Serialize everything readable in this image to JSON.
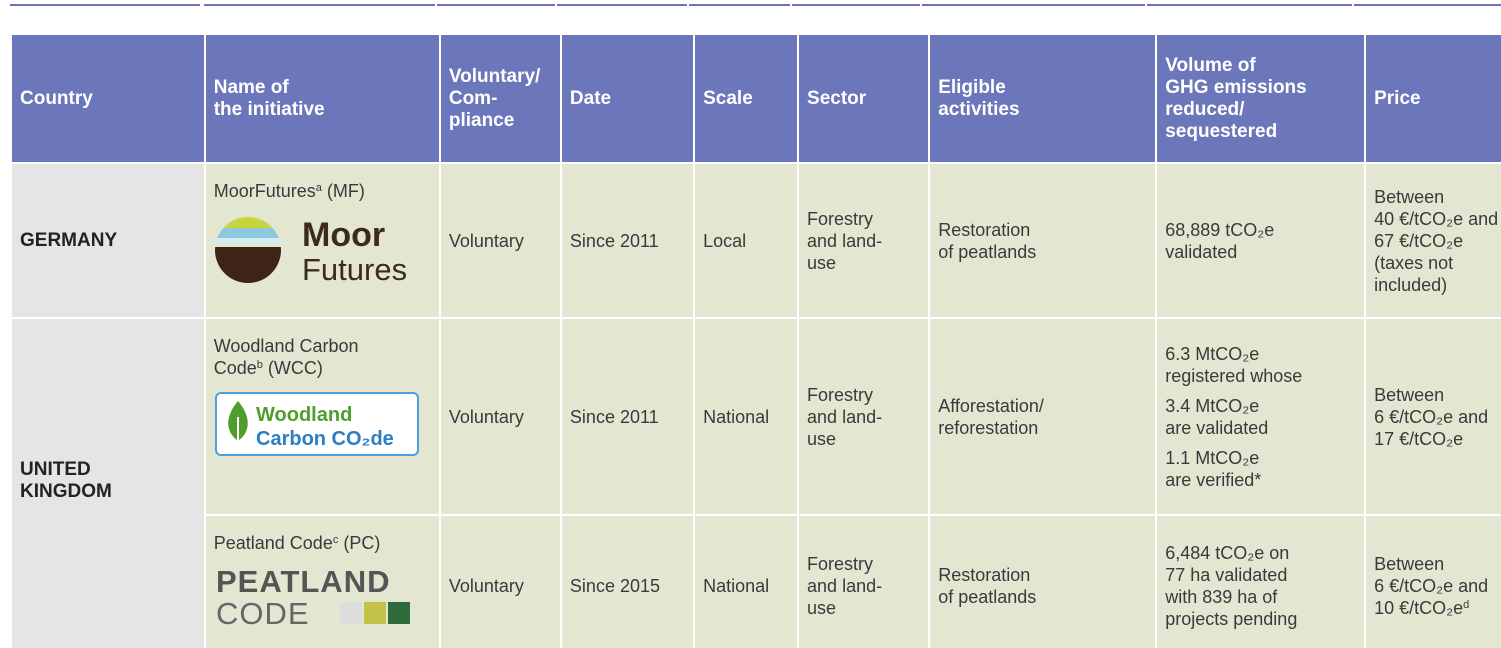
{
  "header": [
    [
      "Country"
    ],
    [
      "Name of",
      "the initiative"
    ],
    [
      "Voluntary/",
      "Com-",
      "pliance"
    ],
    [
      "Date"
    ],
    [
      "Scale"
    ],
    [
      "Sector"
    ],
    [
      "Eligible",
      "activities"
    ],
    [
      "Volume of",
      "GHG emissions",
      "reduced/",
      "sequestered"
    ],
    [
      "Price"
    ]
  ],
  "rows": [
    {
      "country": [
        "GERMANY"
      ],
      "initiatives": [
        {
          "name": "MoorFutures",
          "note": "a",
          "abbr": "(MF)",
          "logo": [
            "Moor",
            "Futures"
          ],
          "type": "Voluntary",
          "date": "Since 2011",
          "scale": "Local",
          "sector": [
            "Forestry",
            "and land-",
            "use"
          ],
          "activities": [
            "Restoration",
            "of peatlands"
          ],
          "volume": [
            [
              "68,889 tCO₂e",
              "validated"
            ]
          ],
          "price": [
            "Between",
            "40 €/tCO₂e and",
            "67 €/tCO₂e",
            "(taxes not",
            "included)"
          ]
        }
      ]
    },
    {
      "country": [
        "UNITED",
        "KINGDOM"
      ],
      "initiatives": [
        {
          "name": "Woodland Carbon Code",
          "note": "b",
          "abbr": "(WCC)",
          "logo": [
            "Woodland",
            "Carbon CO₂de"
          ],
          "type": "Voluntary",
          "date": "Since 2011",
          "scale": "National",
          "sector": [
            "Forestry",
            "and land-",
            "use"
          ],
          "activities": [
            "Afforestation/",
            "reforestation"
          ],
          "volume": [
            [
              "6.3 MtCO₂e",
              "registered whose"
            ],
            [
              "3.4 MtCO₂e",
              "are validated"
            ],
            [
              "1.1 MtCO₂e",
              "are verified*"
            ]
          ],
          "price": [
            "Between",
            "6 €/tCO₂e and",
            "17 €/tCO₂e"
          ]
        },
        {
          "name": "Peatland Code",
          "note": "c",
          "abbr": "(PC)",
          "logo": [
            "PEATLAND",
            "CODE"
          ],
          "type": "Voluntary",
          "date": "Since 2015",
          "scale": "National",
          "sector": [
            "Forestry",
            "and land-",
            "use"
          ],
          "activities": [
            "Restoration",
            "of peatlands"
          ],
          "volume": [
            [
              "6,484 tCO₂e on",
              "77 ha validated",
              "with 839 ha of",
              "projects pending"
            ]
          ],
          "price": [
            "Between",
            "6 €/tCO₂e and",
            "10 €/tCO₂e"
          ],
          "price_note": "d"
        }
      ]
    }
  ]
}
